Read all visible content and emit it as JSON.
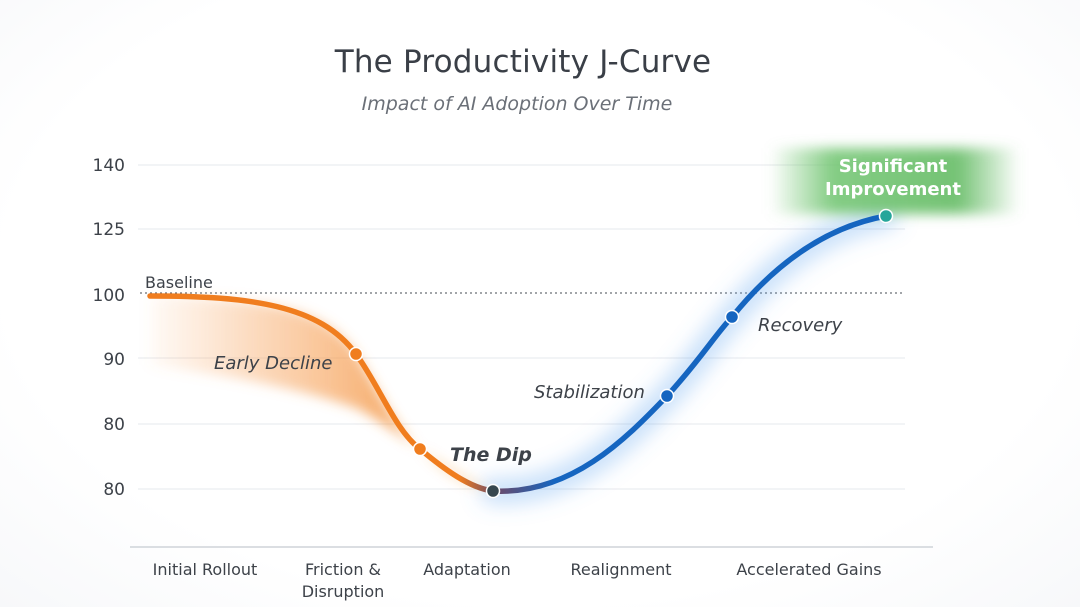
{
  "chart_data": {
    "type": "line",
    "title": "The Productivity J-Curve",
    "subtitle": "Impact of AI Adoption Over Time",
    "y_tick_labels": [
      "140",
      "125",
      "100",
      "90",
      "80",
      "80"
    ],
    "categories": [
      "Initial Rollout",
      "Friction & Disruption",
      "Adaptation",
      "Realignment",
      "Accelerated Gains"
    ],
    "baseline": {
      "label": "Baseline",
      "value": 100
    },
    "grid": true,
    "points": [
      {
        "x": "Initial Rollout",
        "y": 100
      },
      {
        "x": "Friction & Disruption",
        "y": 91,
        "label": "Early Decline"
      },
      {
        "x": "Friction & Disruption",
        "y": 81
      },
      {
        "x": "Adaptation",
        "y": 76,
        "label": "The Dip"
      },
      {
        "x": "Realignment",
        "y": 84,
        "label": "Stabilization"
      },
      {
        "x": "Accelerated Gains",
        "y": 96,
        "label": "Recovery"
      },
      {
        "x": "Accelerated Gains",
        "y": 127,
        "label": "Significant Improvement"
      }
    ],
    "colors": {
      "decline": "#f07d1e",
      "recovery": "#1565c0",
      "dip_marker": "#37474f",
      "improvement_marker": "#26a69a",
      "improvement_glow": "#5cb85c"
    }
  }
}
